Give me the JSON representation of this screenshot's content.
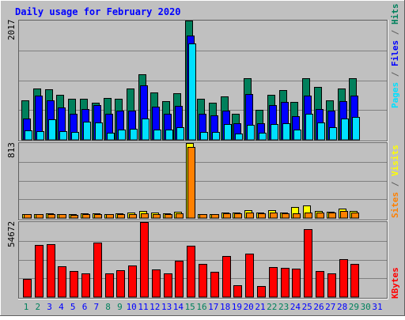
{
  "chart_data": [
    {
      "type": "bar",
      "title": "Daily usage for February 2020",
      "categories": [
        "1",
        "2",
        "3",
        "4",
        "5",
        "6",
        "7",
        "8",
        "9",
        "10",
        "11",
        "12",
        "13",
        "14",
        "15",
        "16",
        "17",
        "18",
        "19",
        "20",
        "21",
        "22",
        "23",
        "24",
        "25",
        "26",
        "27",
        "28",
        "29",
        "30",
        "31"
      ],
      "weekend_days": [
        "1",
        "2",
        "8",
        "9",
        "15",
        "16",
        "22",
        "23",
        "29",
        "30"
      ],
      "ylim": [
        0,
        2017
      ],
      "max_label": "2017",
      "grid": true,
      "series": [
        {
          "name": "Hits",
          "color": "#00805c",
          "values": [
            669,
            868,
            850,
            760,
            693,
            701,
            633,
            713,
            693,
            868,
            1110,
            803,
            653,
            791,
            2017,
            693,
            633,
            733,
            435,
            1036,
            506,
            760,
            837,
            640,
            1036,
            891,
            665,
            868,
            1042,
            null,
            null
          ]
        },
        {
          "name": "Files",
          "color": "#0000ff",
          "values": [
            362,
            743,
            664,
            545,
            442,
            524,
            591,
            435,
            499,
            499,
            921,
            567,
            442,
            568,
            1761,
            442,
            417,
            499,
            278,
            779,
            282,
            591,
            647,
            400,
            743,
            524,
            499,
            660,
            746,
            null,
            null
          ]
        },
        {
          "name": "Pages",
          "color": "#00e0ff",
          "values": [
            157,
            145,
            345,
            151,
            138,
            306,
            291,
            126,
            176,
            191,
            366,
            176,
            176,
            218,
            1632,
            138,
            138,
            264,
            113,
            255,
            126,
            269,
            276,
            176,
            440,
            288,
            218,
            366,
            383,
            null,
            null
          ]
        }
      ]
    },
    {
      "type": "bar",
      "ylim": [
        0,
        813
      ],
      "max_label": "813",
      "grid": true,
      "series": [
        {
          "name": "Visits",
          "color": "#ffff00",
          "values": [
            44,
            44,
            55,
            46,
            40,
            55,
            50,
            40,
            55,
            60,
            77,
            60,
            55,
            65,
            813,
            44,
            44,
            60,
            60,
            86,
            60,
            86,
            60,
            120,
            140,
            77,
            70,
            100,
            80,
            null,
            null
          ]
        },
        {
          "name": "Sites",
          "color": "#ff8000",
          "values": [
            44,
            40,
            44,
            40,
            35,
            44,
            44,
            40,
            40,
            44,
            55,
            44,
            44,
            50,
            774,
            40,
            40,
            50,
            50,
            60,
            50,
            60,
            50,
            50,
            60,
            60,
            60,
            80,
            60,
            null,
            null
          ]
        }
      ]
    },
    {
      "type": "bar",
      "ylim": [
        0,
        54672
      ],
      "max_label": "54672",
      "grid": true,
      "series": [
        {
          "name": "KBytes",
          "color": "#ff0000",
          "values": [
            13020,
            38000,
            38500,
            22500,
            19000,
            17000,
            39500,
            17000,
            19500,
            23000,
            54672,
            20000,
            17000,
            26500,
            37500,
            24000,
            18500,
            30000,
            8500,
            31500,
            8000,
            22000,
            21500,
            21000,
            49500,
            19000,
            17000,
            27500,
            24000,
            null,
            null
          ]
        }
      ]
    }
  ],
  "right_labels": {
    "top": [
      {
        "text": "Pages",
        "color": "#00e0ff"
      },
      {
        "text": " / ",
        "color": "#606060"
      },
      {
        "text": "Files",
        "color": "#0000ff"
      },
      {
        "text": " / ",
        "color": "#606060"
      },
      {
        "text": "Hits",
        "color": "#00805c"
      }
    ],
    "middle": [
      {
        "text": "Sites",
        "color": "#ff8000"
      },
      {
        "text": " / ",
        "color": "#606060"
      },
      {
        "text": "Visits",
        "color": "#ffff00"
      }
    ],
    "bottom": [
      {
        "text": "KBytes",
        "color": "#ff0000"
      }
    ]
  },
  "colors": {
    "background": "#c0c0c0",
    "title": "#0000ff",
    "weekday_label": "#0000ff",
    "weekend_label": "#00805c",
    "grid": "#808080"
  }
}
